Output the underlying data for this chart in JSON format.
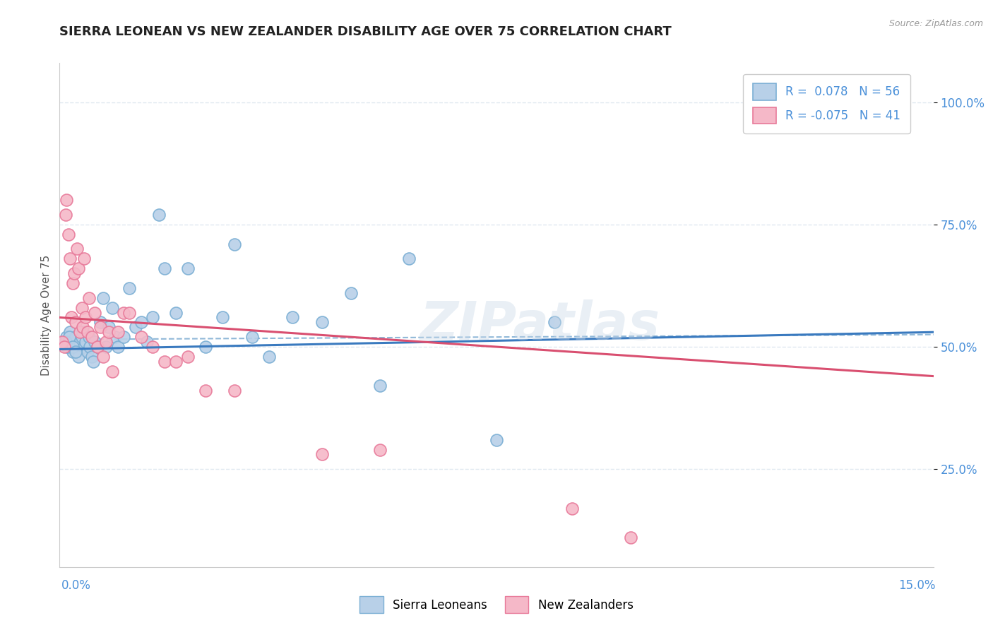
{
  "title": "SIERRA LEONEAN VS NEW ZEALANDER DISABILITY AGE OVER 75 CORRELATION CHART",
  "source": "Source: ZipAtlas.com",
  "ylabel": "Disability Age Over 75",
  "xlim": [
    0.0,
    15.0
  ],
  "ylim": [
    5.0,
    108.0
  ],
  "yticks": [
    25.0,
    50.0,
    75.0,
    100.0
  ],
  "ytick_labels": [
    "25.0%",
    "50.0%",
    "75.0%",
    "100.0%"
  ],
  "legend_r1": "R =  0.078",
  "legend_n1": "N = 56",
  "legend_r2": "R = -0.075",
  "legend_n2": "N = 41",
  "blue_color": "#b8d0e8",
  "pink_color": "#f5b8c8",
  "blue_edge": "#7bafd4",
  "pink_edge": "#e87a9a",
  "trend_blue": "#3a7abf",
  "trend_pink": "#d94f70",
  "dashed_color": "#90b8d8",
  "watermark": "ZIPatlas",
  "blue_scatter_x": [
    0.08,
    0.12,
    0.15,
    0.18,
    0.2,
    0.22,
    0.25,
    0.28,
    0.3,
    0.32,
    0.35,
    0.38,
    0.4,
    0.42,
    0.45,
    0.48,
    0.5,
    0.52,
    0.55,
    0.58,
    0.6,
    0.65,
    0.7,
    0.75,
    0.8,
    0.85,
    0.9,
    0.95,
    1.0,
    1.1,
    1.2,
    1.3,
    1.4,
    1.5,
    1.6,
    1.7,
    1.8,
    2.0,
    2.2,
    2.5,
    2.8,
    3.0,
    3.3,
    3.6,
    4.0,
    4.5,
    5.0,
    5.5,
    6.0,
    7.5,
    8.5,
    0.1,
    0.13,
    0.17,
    0.22,
    0.27
  ],
  "blue_scatter_y": [
    51,
    52,
    50,
    53,
    50,
    49,
    51,
    52,
    50,
    48,
    51,
    52,
    53,
    50,
    51,
    49,
    52,
    50,
    48,
    47,
    51,
    50,
    55,
    60,
    50,
    54,
    58,
    52,
    50,
    52,
    62,
    54,
    55,
    51,
    56,
    77,
    66,
    57,
    66,
    50,
    56,
    71,
    52,
    48,
    56,
    55,
    61,
    42,
    68,
    31,
    55,
    51,
    50,
    52,
    50,
    49
  ],
  "pink_scatter_x": [
    0.05,
    0.08,
    0.1,
    0.12,
    0.15,
    0.18,
    0.2,
    0.22,
    0.25,
    0.28,
    0.3,
    0.32,
    0.35,
    0.38,
    0.4,
    0.42,
    0.45,
    0.48,
    0.5,
    0.55,
    0.6,
    0.65,
    0.7,
    0.75,
    0.8,
    0.85,
    0.9,
    1.0,
    1.1,
    1.2,
    1.4,
    1.6,
    1.8,
    2.0,
    2.2,
    2.5,
    3.0,
    4.5,
    5.5,
    8.8,
    9.8
  ],
  "pink_scatter_y": [
    51,
    50,
    77,
    80,
    73,
    68,
    56,
    63,
    65,
    55,
    70,
    66,
    53,
    58,
    54,
    68,
    56,
    53,
    60,
    52,
    57,
    50,
    54,
    48,
    51,
    53,
    45,
    53,
    57,
    57,
    52,
    50,
    47,
    47,
    48,
    41,
    41,
    28,
    29,
    17,
    11
  ],
  "blue_trend_x": [
    0.0,
    15.0
  ],
  "blue_trend_y": [
    49.5,
    53.0
  ],
  "pink_trend_x": [
    0.0,
    15.0
  ],
  "pink_trend_y": [
    56.0,
    44.0
  ],
  "dashed_line_x": [
    0.0,
    15.0
  ],
  "dashed_line_y": [
    51.5,
    52.5
  ],
  "bg_color": "#ffffff",
  "grid_color": "#e0e8f0"
}
